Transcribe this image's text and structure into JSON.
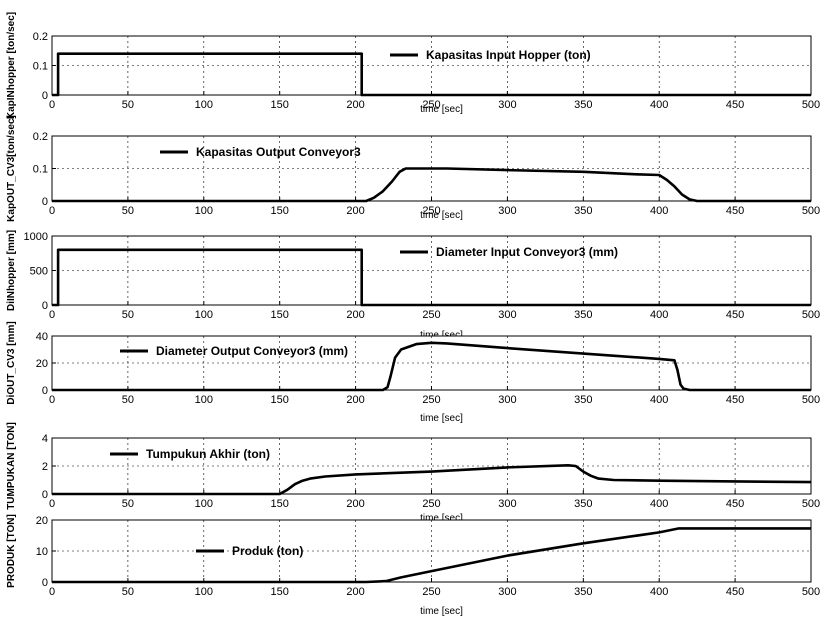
{
  "chart_data": [
    {
      "type": "line",
      "xlabel": "time [sec]",
      "ylabel": "KapINhopper [ton/sec]",
      "xlim": [
        0,
        500
      ],
      "ylim": [
        0,
        0.2
      ],
      "xticks": [
        0,
        50,
        100,
        150,
        200,
        250,
        300,
        350,
        400,
        450,
        500
      ],
      "yticks": [
        0,
        0.1,
        0.2
      ],
      "ytick_labels": [
        "0",
        "0.1",
        "0.2"
      ],
      "grid": true,
      "legend_position": "top-center",
      "series": [
        {
          "name": "Kapasitas Input Hopper (ton)",
          "x": [
            0,
            4,
            4,
            204,
            204,
            500
          ],
          "y": [
            0,
            0,
            0.14,
            0.14,
            0,
            0
          ]
        }
      ]
    },
    {
      "type": "line",
      "xlabel": "time [sec]",
      "ylabel": "KapOUT_CV3[ton/sec]",
      "xlim": [
        0,
        500
      ],
      "ylim": [
        0,
        0.2
      ],
      "xticks": [
        0,
        50,
        100,
        150,
        200,
        250,
        300,
        350,
        400,
        450,
        500
      ],
      "yticks": [
        0,
        0.1,
        0.2
      ],
      "ytick_labels": [
        "0",
        "0.1",
        "0.2"
      ],
      "grid": true,
      "legend_position": "top-left",
      "series": [
        {
          "name": "Kapasitas Output Conveyor3",
          "x": [
            0,
            207,
            212,
            218,
            224,
            229,
            233,
            245,
            260,
            300,
            350,
            385,
            400,
            405,
            410,
            415,
            420,
            425,
            500
          ],
          "y": [
            0,
            0,
            0.01,
            0.03,
            0.06,
            0.09,
            0.1,
            0.1,
            0.1,
            0.095,
            0.09,
            0.082,
            0.08,
            0.065,
            0.045,
            0.02,
            0.005,
            0,
            0
          ]
        }
      ]
    },
    {
      "type": "line",
      "xlabel": "time [sec]",
      "ylabel": "DiINhopper [mm]",
      "xlim": [
        0,
        500
      ],
      "ylim": [
        0,
        1000
      ],
      "xticks": [
        0,
        50,
        100,
        150,
        200,
        250,
        300,
        350,
        400,
        450,
        500
      ],
      "yticks": [
        0,
        500,
        1000
      ],
      "ytick_labels": [
        "0",
        "500",
        "1000"
      ],
      "grid": true,
      "legend_position": "top-center",
      "series": [
        {
          "name": "Diameter Input Conveyor3 (mm)",
          "x": [
            0,
            4,
            4,
            204,
            204,
            500
          ],
          "y": [
            0,
            0,
            800,
            800,
            0,
            0
          ]
        }
      ]
    },
    {
      "type": "line",
      "xlabel": "time [sec]",
      "ylabel": "DiOUT_CV3 [mm]",
      "xlim": [
        0,
        500
      ],
      "ylim": [
        0,
        40
      ],
      "xticks": [
        0,
        50,
        100,
        150,
        200,
        250,
        300,
        350,
        400,
        450,
        500
      ],
      "yticks": [
        0,
        20,
        40
      ],
      "ytick_labels": [
        "0",
        "20",
        "40"
      ],
      "grid": true,
      "legend_position": "top-left",
      "series": [
        {
          "name": "Diameter Output Conveyor3 (mm)",
          "x": [
            0,
            218,
            221,
            223,
            226,
            230,
            240,
            250,
            260,
            300,
            350,
            400,
            410,
            412,
            414,
            416,
            420,
            500
          ],
          "y": [
            0,
            0,
            2,
            10,
            24,
            30,
            34,
            35,
            34.5,
            31,
            27,
            23,
            22,
            15,
            4,
            1,
            0,
            0
          ]
        }
      ]
    },
    {
      "type": "line",
      "xlabel": "time [sec]",
      "ylabel": "TUMPUKAN [TON]",
      "xlim": [
        0,
        500
      ],
      "ylim": [
        0,
        4
      ],
      "xticks": [
        0,
        50,
        100,
        150,
        200,
        250,
        300,
        350,
        400,
        450,
        500
      ],
      "yticks": [
        0,
        2,
        4
      ],
      "ytick_labels": [
        "0",
        "2",
        "4"
      ],
      "grid": true,
      "legend_position": "top-left",
      "series": [
        {
          "name": "Tumpukun Akhir (ton)",
          "x": [
            0,
            150,
            155,
            160,
            165,
            170,
            180,
            200,
            250,
            300,
            340,
            345,
            350,
            355,
            360,
            370,
            400,
            450,
            500
          ],
          "y": [
            0,
            0,
            0.3,
            0.7,
            0.95,
            1.1,
            1.25,
            1.4,
            1.6,
            1.9,
            2.05,
            2.0,
            1.6,
            1.3,
            1.1,
            1.0,
            0.95,
            0.9,
            0.85
          ]
        }
      ]
    },
    {
      "type": "line",
      "xlabel": "time [sec]",
      "ylabel": "PRODUK [TON]",
      "xlim": [
        0,
        500
      ],
      "ylim": [
        0,
        20
      ],
      "xticks": [
        0,
        50,
        100,
        150,
        200,
        250,
        300,
        350,
        400,
        450,
        500
      ],
      "yticks": [
        0,
        10,
        20
      ],
      "ytick_labels": [
        "0",
        "10",
        "20"
      ],
      "grid": true,
      "legend_position": "middle-left",
      "series": [
        {
          "name": "Produk (ton)",
          "x": [
            0,
            207,
            220,
            230,
            250,
            300,
            350,
            400,
            413,
            500
          ],
          "y": [
            0,
            0,
            0.3,
            1.5,
            3.5,
            8.5,
            12.5,
            16,
            17.3,
            17.3
          ]
        }
      ]
    }
  ]
}
